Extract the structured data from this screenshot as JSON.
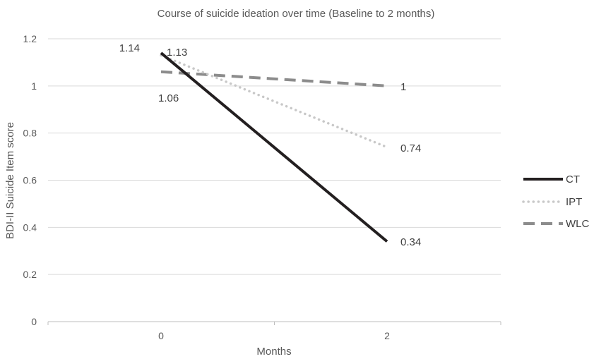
{
  "chart_data": {
    "type": "line",
    "title": "Course of suicide ideation over time (Baseline to 2 months)",
    "xlabel": "Months",
    "ylabel": "BDI-II Suicide Item score",
    "x": [
      0,
      2
    ],
    "ylim": [
      0,
      1.2
    ],
    "yticks": [
      0,
      0.2,
      0.4,
      0.6,
      0.8,
      1,
      1.2
    ],
    "ytick_labels": [
      "0",
      "0.2",
      "0.4",
      "0.6",
      "0.8",
      "1",
      "1.2"
    ],
    "xtick_labels": [
      "0",
      "2"
    ],
    "grid": true,
    "legend_position": "right",
    "series": [
      {
        "name": "CT",
        "values": [
          1.14,
          0.34
        ],
        "labels": [
          "1.14",
          "0.34"
        ],
        "color": "#231f20",
        "style": "solid"
      },
      {
        "name": "IPT",
        "values": [
          1.13,
          0.74
        ],
        "labels": [
          "1.13",
          "0.74"
        ],
        "color": "#c8c8c8",
        "style": "dotted"
      },
      {
        "name": "WLC",
        "values": [
          1.06,
          1.0
        ],
        "labels": [
          "1.06",
          "1"
        ],
        "color": "#8c8c8c",
        "style": "dashed"
      }
    ]
  }
}
